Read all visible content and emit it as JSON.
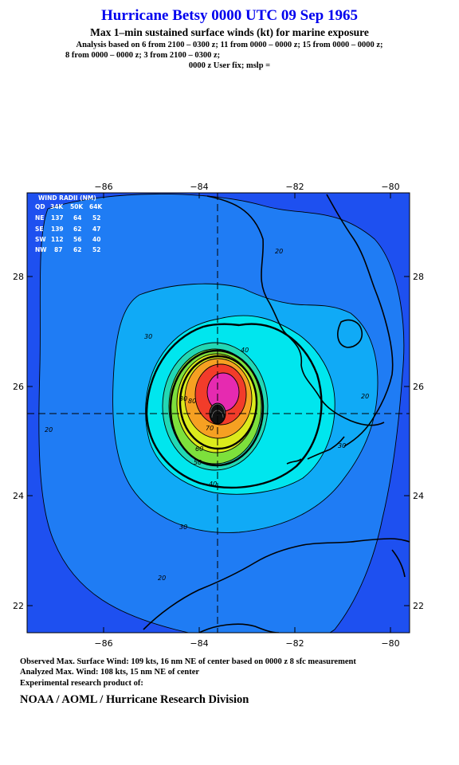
{
  "header": {
    "title": "Hurricane Betsy 0000 UTC 09 Sep 1965",
    "subtitle": "Max 1–min sustained surface winds (kt) for marine exposure",
    "analysis_line1": "Analysis based on  6 from 2100 – 0300 z;  11 from 0000 – 0000 z;  15 from 0000 – 0000 z;",
    "analysis_line2": "8 from 0000 – 0000 z;  3 from 2100 – 0300 z;",
    "analysis_line3": "0000 z User fix; mslp ="
  },
  "map": {
    "longitude_ticks": [
      "−86",
      "−84",
      "−82",
      "−80"
    ],
    "latitude_ticks": [
      "28",
      "26",
      "24",
      "22"
    ],
    "contour_labels": {
      "c20_upper": "20",
      "c20_left": "20",
      "c20_right": "20",
      "c20_lower": "20",
      "c30_left": "30",
      "c30_right": "30",
      "c30_lower": "30",
      "c30_inner": "30",
      "c40_upper": "40",
      "c40_lower": "40",
      "c50": "50",
      "c60": "60",
      "c70": "70",
      "c80": "80"
    },
    "wind_radii": {
      "title": "WIND RADII (NM)",
      "header": [
        "QD",
        "34K",
        "50K",
        "64K"
      ],
      "rows": [
        [
          "NE",
          "137",
          "64",
          "52"
        ],
        [
          "SE",
          "139",
          "62",
          "47"
        ],
        [
          "SW",
          "112",
          "56",
          "40"
        ],
        [
          "NW",
          "87",
          "62",
          "52"
        ]
      ]
    },
    "colors": {
      "ocean_bg": "#1e50f0",
      "band_20": "#1f7cf4",
      "band_30": "#10aaf6",
      "band_40": "#00e6ee",
      "band_50": "#22d8b4",
      "band_60": "#7de03c",
      "band_70": "#dcea1c",
      "band_80": "#f6a022",
      "band_90": "#f23c2a",
      "band_100": "#e62ab0"
    }
  },
  "footer": {
    "observed": "Observed Max. Surface Wind: 109 kts, 16 nm NE of center based on 0000 z 8 sfc measurement",
    "analyzed": "Analyzed Max. Wind: 108 kts, 15 nm NE of center",
    "experimental": "Experimental research product of:",
    "credit": "NOAA / AOML / Hurricane Research Division"
  }
}
